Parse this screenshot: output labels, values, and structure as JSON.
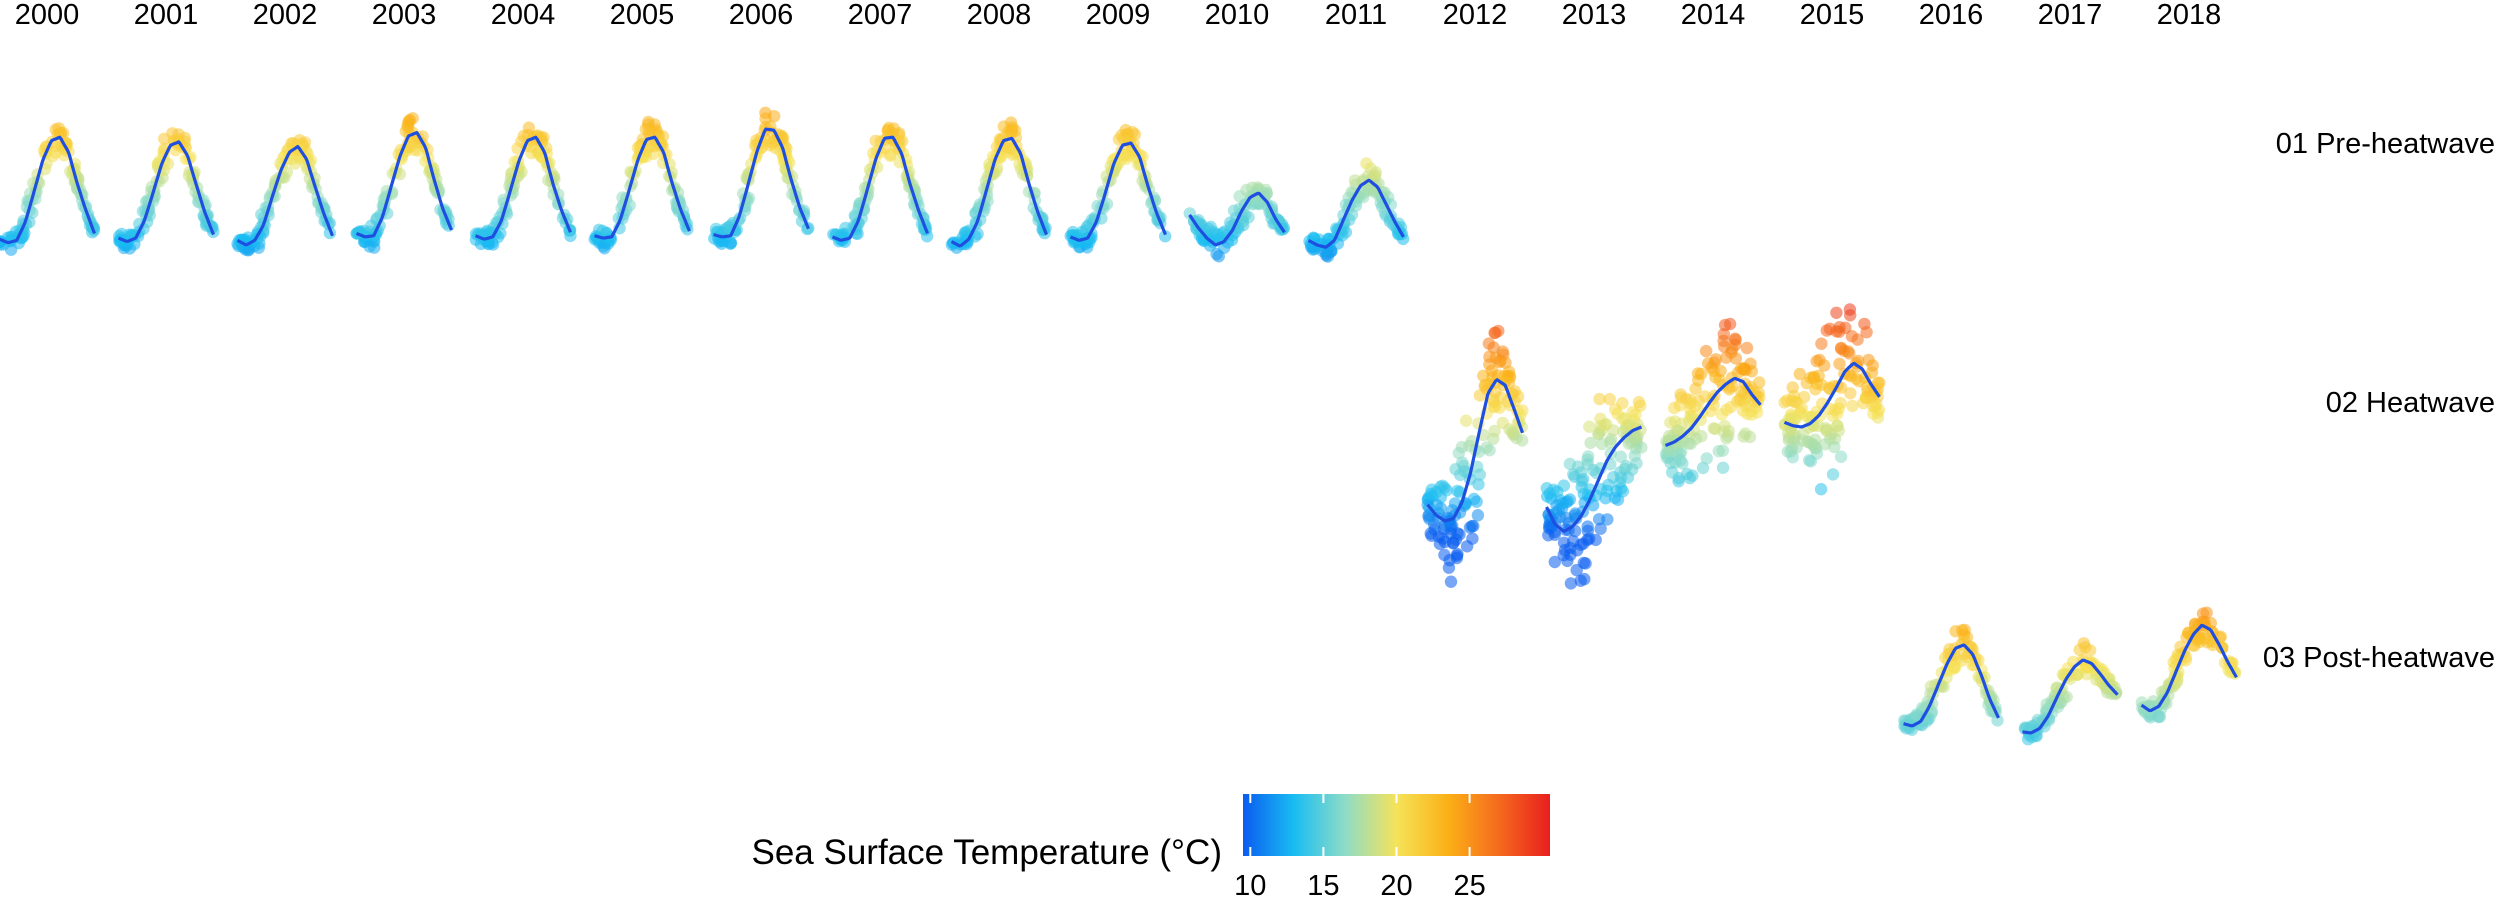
{
  "chart_data": {
    "type": "scatter",
    "title": "",
    "xlabel": "",
    "ylabel": "",
    "grid": false,
    "facet_columns": [
      "2000",
      "2001",
      "2002",
      "2003",
      "2004",
      "2005",
      "2006",
      "2007",
      "2008",
      "2009",
      "2010",
      "2011",
      "2012",
      "2013",
      "2014",
      "2015",
      "2016",
      "2017",
      "2018"
    ],
    "facet_rows": [
      "01 Pre-heatwave",
      "02 Heatwave",
      "03 Post-heatwave"
    ],
    "y_domain_celsius": [
      8.5,
      30.5
    ],
    "x_unit": "month",
    "legend": {
      "title": "Sea Surface Temperature (°C)",
      "ticks": [
        10,
        15,
        20,
        25
      ],
      "range": [
        9.5,
        30.5
      ],
      "placement": "bottom",
      "colors": [
        "#0a5cf0",
        "#19bdf2",
        "#8fdcc6",
        "#f5e35a",
        "#fbb116",
        "#f56a1e",
        "#e81f1f"
      ]
    },
    "smooth_line_color": "#1f4fe0",
    "panels": [
      {
        "year": "2000",
        "period": "01 Pre-heatwave",
        "monthly_mean": [
          13.1,
          12.8,
          13.0,
          14.6,
          17.2,
          19.9,
          21.6,
          21.9,
          20.6,
          17.9,
          15.6,
          13.6
        ]
      },
      {
        "year": "2001",
        "period": "01 Pre-heatwave",
        "monthly_mean": [
          13.2,
          12.9,
          13.2,
          14.7,
          17.1,
          19.6,
          21.2,
          21.5,
          20.3,
          17.8,
          15.4,
          13.5
        ]
      },
      {
        "year": "2002",
        "period": "01 Pre-heatwave",
        "monthly_mean": [
          13.0,
          12.6,
          13.0,
          14.3,
          16.7,
          19.0,
          20.6,
          21.1,
          20.0,
          17.6,
          15.3,
          13.4
        ]
      },
      {
        "year": "2003",
        "period": "01 Pre-heatwave",
        "monthly_mean": [
          13.6,
          13.3,
          13.4,
          15.0,
          17.6,
          20.2,
          22.0,
          22.3,
          21.0,
          18.2,
          15.7,
          13.9
        ]
      },
      {
        "year": "2004",
        "period": "01 Pre-heatwave",
        "monthly_mean": [
          13.4,
          13.1,
          13.3,
          14.7,
          17.2,
          19.8,
          21.6,
          21.9,
          20.6,
          17.8,
          15.5,
          13.7
        ]
      },
      {
        "year": "2005",
        "period": "01 Pre-heatwave",
        "monthly_mean": [
          13.4,
          13.2,
          13.3,
          14.8,
          17.3,
          19.9,
          21.7,
          21.9,
          20.6,
          17.9,
          15.6,
          13.8
        ]
      },
      {
        "year": "2006",
        "period": "01 Pre-heatwave",
        "monthly_mean": [
          13.5,
          13.3,
          13.4,
          15.1,
          17.8,
          20.6,
          22.6,
          22.5,
          21.0,
          18.2,
          15.8,
          14.0
        ]
      },
      {
        "year": "2007",
        "period": "01 Pre-heatwave",
        "monthly_mean": [
          13.3,
          13.0,
          13.2,
          14.7,
          17.3,
          20.0,
          21.8,
          21.9,
          20.5,
          17.8,
          15.5,
          13.6
        ]
      },
      {
        "year": "2008",
        "period": "01 Pre-heatwave",
        "monthly_mean": [
          12.9,
          12.5,
          13.1,
          14.6,
          17.2,
          19.9,
          21.6,
          21.8,
          20.5,
          17.8,
          15.4,
          13.5
        ]
      },
      {
        "year": "2009",
        "period": "01 Pre-heatwave",
        "monthly_mean": [
          13.3,
          13.0,
          13.2,
          14.6,
          17.0,
          19.6,
          21.2,
          21.4,
          20.2,
          17.6,
          15.3,
          13.5
        ]
      },
      {
        "year": "2010",
        "period": "01 Pre-heatwave",
        "monthly_mean": [
          15.2,
          14.1,
          13.2,
          12.6,
          12.9,
          13.9,
          15.5,
          16.7,
          17.1,
          16.3,
          14.8,
          13.7
        ]
      },
      {
        "year": "2011",
        "period": "01 Pre-heatwave",
        "monthly_mean": [
          13.0,
          12.6,
          12.4,
          13.0,
          14.7,
          16.4,
          17.7,
          18.2,
          17.6,
          16.1,
          14.6,
          13.3
        ]
      },
      {
        "year": "2012",
        "period": "02 Heatwave",
        "monthly_mean": [
          12.2,
          11.3,
          10.8,
          11.0,
          12.4,
          15.0,
          18.5,
          21.8,
          23.0,
          22.5,
          20.5,
          18.4
        ]
      },
      {
        "year": "2013",
        "period": "02 Heatwave",
        "monthly_mean": [
          12.0,
          10.5,
          9.9,
          10.3,
          11.2,
          12.6,
          14.3,
          16.0,
          17.2,
          18.0,
          18.6,
          18.9
        ]
      },
      {
        "year": "2014",
        "period": "02 Heatwave",
        "monthly_mean": [
          17.3,
          17.6,
          18.1,
          18.8,
          19.8,
          20.9,
          21.9,
          22.6,
          23.1,
          22.8,
          21.7,
          20.8
        ]
      },
      {
        "year": "2015",
        "period": "02 Heatwave",
        "monthly_mean": [
          19.3,
          19.0,
          18.9,
          19.2,
          19.9,
          21.0,
          22.3,
          23.7,
          24.4,
          23.9,
          22.6,
          21.5
        ]
      },
      {
        "year": "2016",
        "period": "03 Post-heatwave",
        "monthly_mean": [
          15.3,
          15.1,
          15.5,
          16.8,
          18.6,
          20.4,
          21.8,
          22.1,
          21.3,
          19.5,
          17.4,
          15.8
        ]
      },
      {
        "year": "2017",
        "period": "03 Post-heatwave",
        "monthly_mean": [
          14.6,
          14.5,
          14.9,
          16.0,
          17.6,
          19.1,
          20.2,
          20.8,
          20.5,
          19.6,
          18.6,
          17.8
        ]
      },
      {
        "year": "2018",
        "period": "03 Post-heatwave",
        "monthly_mean": [
          16.9,
          16.4,
          16.8,
          18.0,
          19.8,
          21.6,
          23.0,
          23.8,
          23.4,
          22.1,
          20.6,
          19.3
        ]
      }
    ]
  }
}
